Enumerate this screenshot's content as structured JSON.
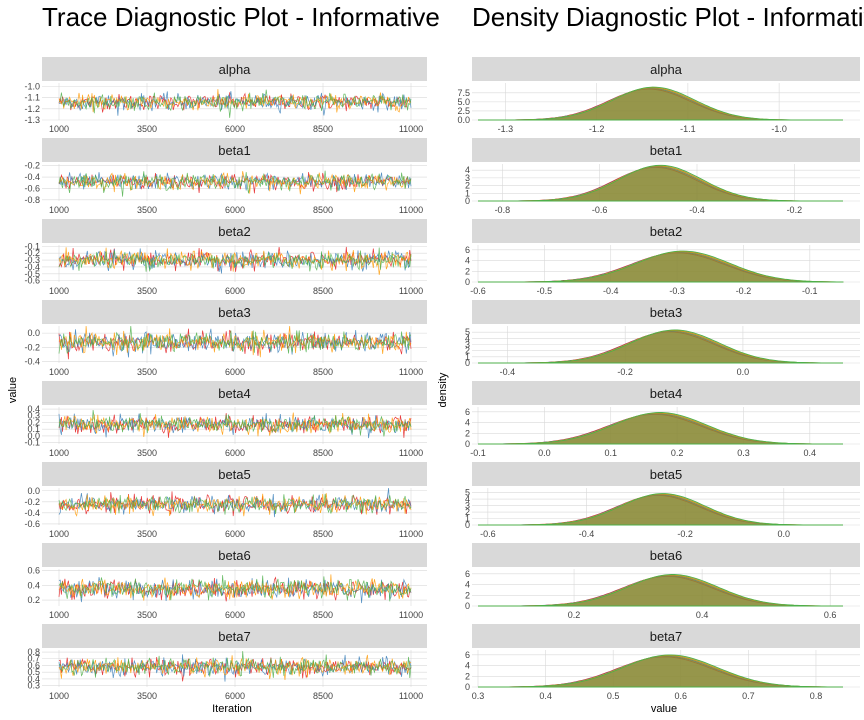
{
  "titles": {
    "trace": "Trace Diagnostic Plot - Informative",
    "density": "Density Diagnostic Plot - Informativ"
  },
  "labels": {
    "trace_x": "Iteration",
    "trace_y": "value",
    "density_x": "value",
    "density_y": "density"
  },
  "colors": {
    "chain1": "#e41a1c",
    "chain2": "#377eb8",
    "chain3": "#ff9900",
    "chain4": "#4daf4a",
    "density_fill": "#8b8b3a",
    "strip": "#d9d9d9",
    "grid": "#d9d9d9"
  },
  "chart_data": [
    {
      "type": "line",
      "panel_group": "trace",
      "x_ticks": [
        1000,
        3500,
        6000,
        8500,
        11000
      ],
      "xlim": [
        1000,
        11000
      ],
      "panels": [
        {
          "name": "alpha",
          "y_ticks": [
            "-1.0",
            "-1.1",
            "-1.2",
            "-1.3"
          ],
          "y_tick_values": [
            -1.0,
            -1.1,
            -1.2,
            -1.3
          ],
          "ylim": [
            -1.3,
            -0.97
          ],
          "center": -1.14,
          "spread": 0.035
        },
        {
          "name": "beta1",
          "y_ticks": [
            "-0.2",
            "-0.4",
            "-0.6",
            "-0.8"
          ],
          "y_tick_values": [
            -0.2,
            -0.4,
            -0.6,
            -0.8
          ],
          "ylim": [
            -0.82,
            -0.17
          ],
          "center": -0.48,
          "spread": 0.07
        },
        {
          "name": "beta2",
          "y_ticks": [
            "-0.1",
            "-0.2",
            "-0.3",
            "-0.4",
            "-0.5",
            "-0.6"
          ],
          "y_tick_values": [
            -0.1,
            -0.2,
            -0.3,
            -0.4,
            -0.5,
            -0.6
          ],
          "ylim": [
            -0.62,
            -0.08
          ],
          "center": -0.3,
          "spread": 0.065
        },
        {
          "name": "beta3",
          "y_ticks": [
            "0.0",
            "-0.2",
            "-0.4"
          ],
          "y_tick_values": [
            0.0,
            -0.2,
            -0.4
          ],
          "ylim": [
            -0.42,
            0.1
          ],
          "center": -0.13,
          "spread": 0.07
        },
        {
          "name": "beta4",
          "y_ticks": [
            "0.4",
            "0.3",
            "0.2",
            "0.1",
            "0.0",
            "-0.1"
          ],
          "y_tick_values": [
            0.4,
            0.3,
            0.2,
            0.1,
            0.0,
            -0.1
          ],
          "ylim": [
            -0.12,
            0.43
          ],
          "center": 0.17,
          "spread": 0.065
        },
        {
          "name": "beta5",
          "y_ticks": [
            "0.0",
            "-0.2",
            "-0.4",
            "-0.6"
          ],
          "y_tick_values": [
            0.0,
            -0.2,
            -0.4,
            -0.6
          ],
          "ylim": [
            -0.62,
            0.05
          ],
          "center": -0.25,
          "spread": 0.075
        },
        {
          "name": "beta6",
          "y_ticks": [
            "0.6",
            "0.4",
            "0.2"
          ],
          "y_tick_values": [
            0.6,
            0.4,
            0.2
          ],
          "ylim": [
            0.12,
            0.62
          ],
          "center": 0.35,
          "spread": 0.065
        },
        {
          "name": "beta7",
          "y_ticks": [
            "0.8",
            "0.7",
            "0.6",
            "0.5",
            "0.4",
            "0.3"
          ],
          "y_tick_values": [
            0.8,
            0.7,
            0.6,
            0.5,
            0.4,
            0.3
          ],
          "ylim": [
            0.28,
            0.83
          ],
          "center": 0.58,
          "spread": 0.065
        }
      ]
    },
    {
      "type": "area",
      "panel_group": "density",
      "panels": [
        {
          "name": "alpha",
          "x_ticks": [
            "-1.3",
            "-1.2",
            "-1.1",
            "-1.0"
          ],
          "x_tick_values": [
            -1.3,
            -1.2,
            -1.1,
            -1.0
          ],
          "xlim": [
            -1.33,
            -0.93
          ],
          "y_ticks": [
            "7.5",
            "5.0",
            "2.5",
            "0.0"
          ],
          "y_tick_values": [
            7.5,
            5.0,
            2.5,
            0.0
          ],
          "ylim": [
            0,
            10.2
          ],
          "mean": -1.14,
          "sd": 0.045,
          "peak": 8.8
        },
        {
          "name": "beta1",
          "x_ticks": [
            "-0.8",
            "-0.6",
            "-0.4",
            "-0.2"
          ],
          "x_tick_values": [
            -0.8,
            -0.6,
            -0.4,
            -0.2
          ],
          "xlim": [
            -0.85,
            -0.1
          ],
          "y_ticks": [
            "4",
            "3",
            "2",
            "1",
            "0"
          ],
          "y_tick_values": [
            4,
            3,
            2,
            1,
            0
          ],
          "ylim": [
            0,
            4.8
          ],
          "mean": -0.48,
          "sd": 0.085,
          "peak": 4.5
        },
        {
          "name": "beta2",
          "x_ticks": [
            "-0.6",
            "-0.5",
            "-0.4",
            "-0.3",
            "-0.2",
            "-0.1"
          ],
          "x_tick_values": [
            -0.6,
            -0.5,
            -0.4,
            -0.3,
            -0.2,
            -0.1
          ],
          "xlim": [
            -0.6,
            -0.05
          ],
          "y_ticks": [
            "6",
            "4",
            "2",
            "0"
          ],
          "y_tick_values": [
            6,
            4,
            2,
            0
          ],
          "ylim": [
            0,
            6.9
          ],
          "mean": -0.295,
          "sd": 0.07,
          "peak": 5.6
        },
        {
          "name": "beta3",
          "x_ticks": [
            "-0.4",
            "-0.2",
            "0.0"
          ],
          "x_tick_values": [
            -0.4,
            -0.2,
            0.0
          ],
          "xlim": [
            -0.45,
            0.17
          ],
          "y_ticks": [
            "5",
            "4",
            "3",
            "2",
            "1",
            "0"
          ],
          "y_tick_values": [
            5,
            4,
            3,
            2,
            1,
            0
          ],
          "ylim": [
            0,
            6.0
          ],
          "mean": -0.12,
          "sd": 0.075,
          "peak": 5.2
        },
        {
          "name": "beta4",
          "x_ticks": [
            "-0.1",
            "0.0",
            "0.1",
            "0.2",
            "0.3",
            "0.4"
          ],
          "x_tick_values": [
            -0.1,
            0.0,
            0.1,
            0.2,
            0.3,
            0.4
          ],
          "xlim": [
            -0.1,
            0.45
          ],
          "y_ticks": [
            "6",
            "4",
            "2",
            "0"
          ],
          "y_tick_values": [
            6,
            4,
            2,
            0
          ],
          "ylim": [
            0,
            6.9
          ],
          "mean": 0.17,
          "sd": 0.07,
          "peak": 5.7
        },
        {
          "name": "beta5",
          "x_ticks": [
            "-0.6",
            "-0.4",
            "-0.2",
            "0.0"
          ],
          "x_tick_values": [
            -0.6,
            -0.4,
            -0.2,
            0.0
          ],
          "xlim": [
            -0.62,
            0.12
          ],
          "y_ticks": [
            "5",
            "4",
            "3",
            "2",
            "1",
            "0"
          ],
          "y_tick_values": [
            5,
            4,
            3,
            2,
            1,
            0
          ],
          "ylim": [
            0,
            5.7
          ],
          "mean": -0.25,
          "sd": 0.085,
          "peak": 4.7
        },
        {
          "name": "beta6",
          "x_ticks": [
            "0.2",
            "0.4",
            "0.6"
          ],
          "x_tick_values": [
            0.2,
            0.4,
            0.6
          ],
          "xlim": [
            0.05,
            0.62
          ],
          "y_ticks": [
            "6",
            "4",
            "2",
            "0"
          ],
          "y_tick_values": [
            6,
            4,
            2,
            0
          ],
          "ylim": [
            0,
            6.9
          ],
          "mean": 0.35,
          "sd": 0.07,
          "peak": 5.7
        },
        {
          "name": "beta7",
          "x_ticks": [
            "0.3",
            "0.4",
            "0.5",
            "0.6",
            "0.7",
            "0.8"
          ],
          "x_tick_values": [
            0.3,
            0.4,
            0.5,
            0.6,
            0.7,
            0.8
          ],
          "xlim": [
            0.3,
            0.84
          ],
          "y_ticks": [
            "6",
            "4",
            "2",
            "0"
          ],
          "y_tick_values": [
            6,
            4,
            2,
            0
          ],
          "ylim": [
            0,
            6.9
          ],
          "mean": 0.58,
          "sd": 0.07,
          "peak": 5.8
        }
      ]
    }
  ]
}
